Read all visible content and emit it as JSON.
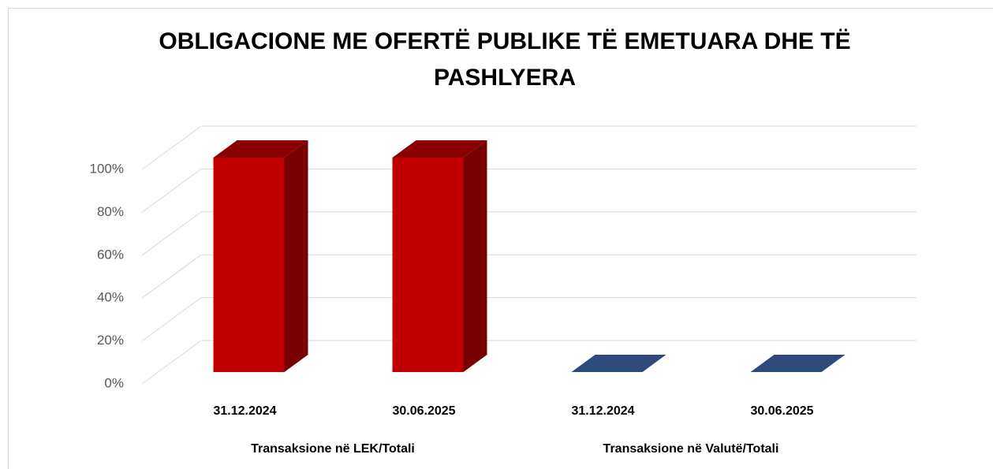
{
  "chart_data": {
    "type": "bar3d",
    "title": "OBLIGACIONE ME OFERTË PUBLIKE TË EMETUARA DHE TË PASHLYERA",
    "groups": [
      {
        "name": "Transaksione në LEK/Totali",
        "color": "#c00000",
        "categories": [
          "31.12.2024",
          "30.06.2025"
        ],
        "values": [
          100,
          100
        ]
      },
      {
        "name": "Transaksione në Valutë/Totali",
        "color": "#2e4a7a",
        "categories": [
          "31.12.2024",
          "30.06.2025"
        ],
        "values": [
          0,
          0
        ]
      }
    ],
    "ylim": [
      0,
      100
    ],
    "yticks": [
      {
        "value": 0,
        "label": "0%"
      },
      {
        "value": 20,
        "label": "20%"
      },
      {
        "value": 40,
        "label": "40%"
      },
      {
        "value": 60,
        "label": "60%"
      },
      {
        "value": 80,
        "label": "80%"
      },
      {
        "value": 100,
        "label": "100%"
      }
    ],
    "grid": true
  }
}
